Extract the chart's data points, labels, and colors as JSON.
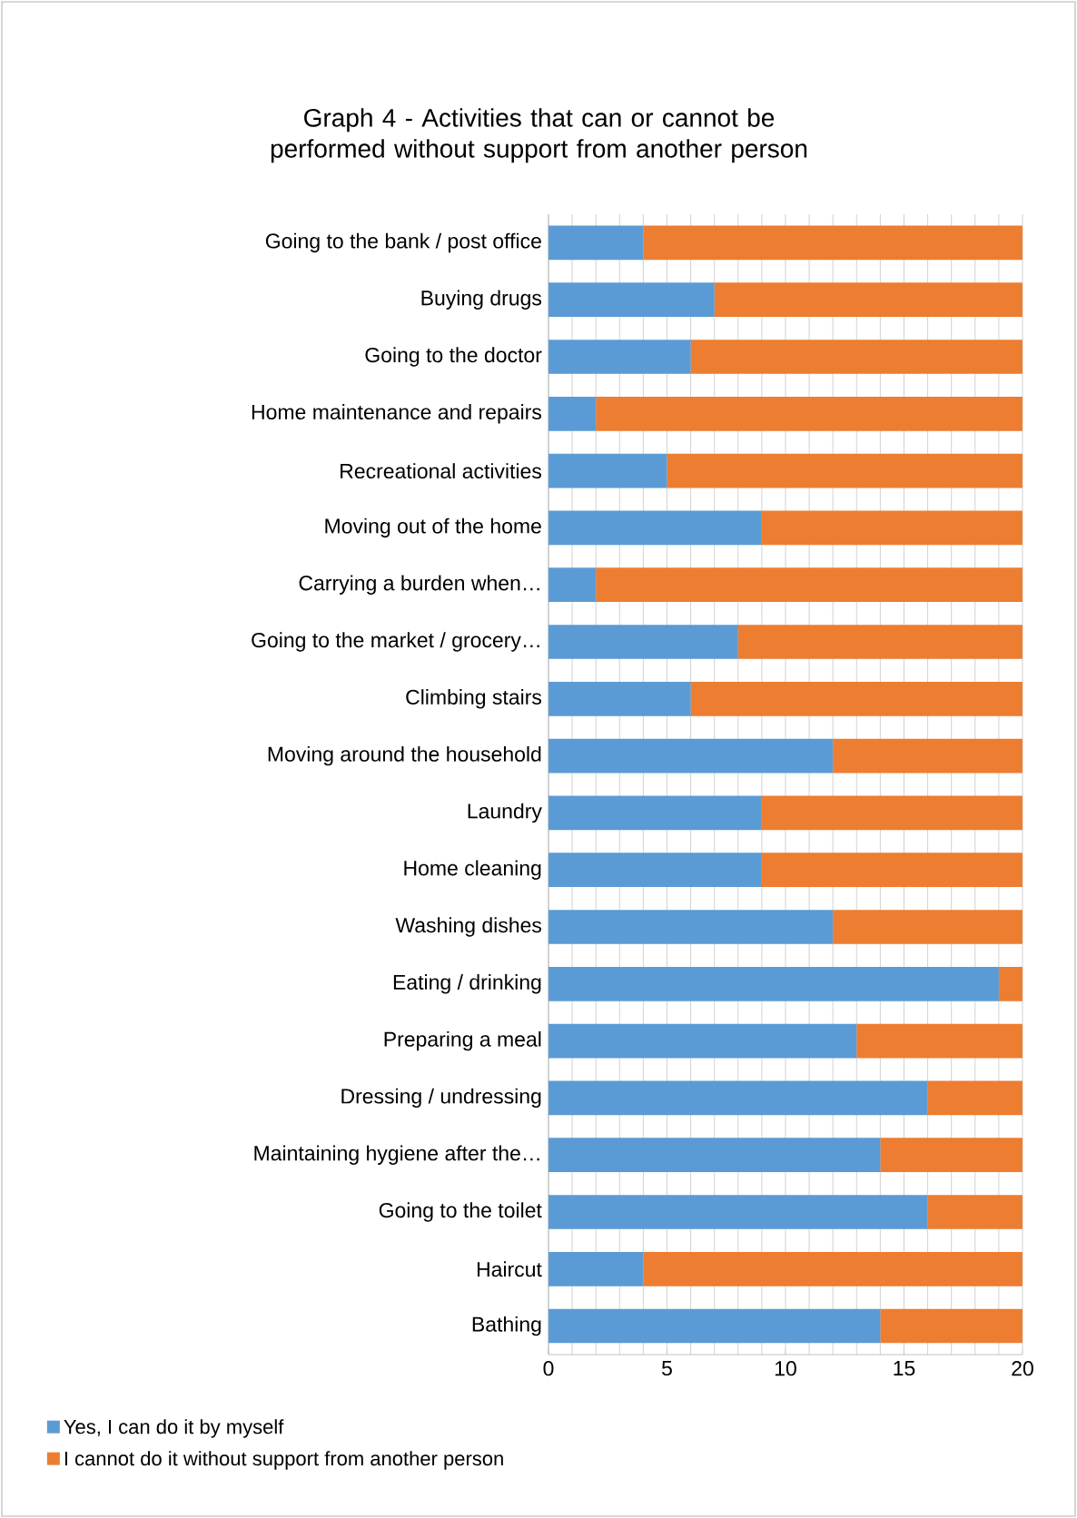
{
  "chart_data": {
    "type": "bar",
    "orientation": "horizontal",
    "stacked": true,
    "title": "Graph 4 - Activities that can or cannot be performed without support from another person",
    "categories": [
      "Going to the bank / post office",
      "Buying drugs",
      "Going to the doctor",
      "Home maintenance and repairs",
      "Recreational activities",
      "Moving out of the home",
      "Carrying a burden when…",
      "Going to the market / grocery…",
      "Climbing stairs",
      "Moving around the household",
      "Laundry",
      "Home cleaning",
      "Washing dishes",
      "Eating / drinking",
      "Preparing a meal",
      "Dressing / undressing",
      "Maintaining hygiene after the…",
      "Going to the toilet",
      "Haircut",
      "Bathing"
    ],
    "series": [
      {
        "name": "Yes, I can do it by myself",
        "color": "#5b9bd5",
        "values": [
          4,
          7,
          6,
          2,
          5,
          9,
          2,
          8,
          6,
          12,
          9,
          9,
          12,
          19,
          13,
          16,
          14,
          16,
          4,
          14
        ]
      },
      {
        "name": "I cannot do it without support from another person",
        "color": "#ed7d31",
        "values": [
          16,
          13,
          14,
          18,
          15,
          11,
          18,
          12,
          14,
          8,
          11,
          11,
          8,
          1,
          7,
          4,
          6,
          4,
          16,
          6
        ]
      }
    ],
    "xlim": [
      0,
      20
    ],
    "xticks": [
      0,
      5,
      10,
      15,
      20
    ],
    "grid": "x",
    "legend": "bottom left"
  }
}
